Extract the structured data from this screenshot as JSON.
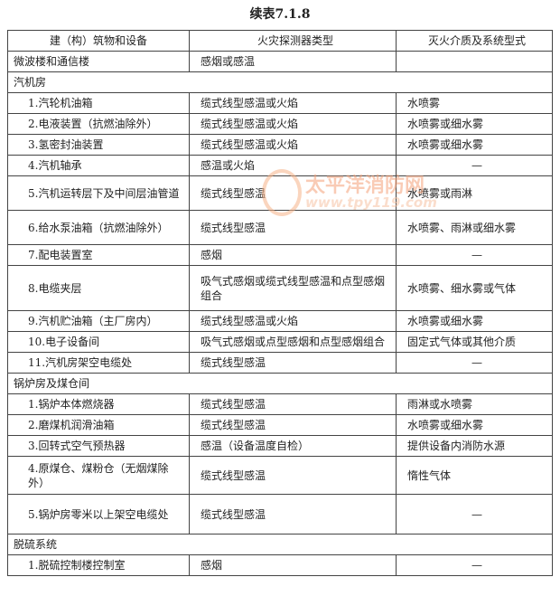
{
  "title": "续表7.1.8",
  "headers": [
    "建（构）筑物和设备",
    "火灾探测器类型",
    "灭火介质及系统型式"
  ],
  "rows": [
    {
      "a": "微波楼和通信楼",
      "b": "感烟或感温",
      "c": ""
    },
    {
      "section": "汽机房"
    },
    {
      "a": "1.汽轮机油箱",
      "b": "缆式线型感温或火焰",
      "c": "水喷雾"
    },
    {
      "a": "2.电液装置（抗燃油除外）",
      "b": "缆式线型感温或火焰",
      "c": "水喷雾或细水雾"
    },
    {
      "a": "3.氢密封油装置",
      "b": "缆式线型感温或火焰",
      "c": "水喷雾或细水雾"
    },
    {
      "a": "4.汽机轴承",
      "b": "感温或火焰",
      "c": "—"
    },
    {
      "a": "5.汽机运转层下及中间层油管道",
      "b": "缆式线型感温",
      "c": "水喷雾或雨淋"
    },
    {
      "a": "6.给水泵油箱（抗燃油除外）",
      "b": "缆式线型感温",
      "c": "水喷雾、雨淋或细水雾"
    },
    {
      "a": "7.配电装置室",
      "b": "感烟",
      "c": "—"
    },
    {
      "a": "8.电缆夹层",
      "b": "吸气式感烟或缆式线型感温和点型感烟组合",
      "c": "水喷雾、细水雾或气体"
    },
    {
      "a": "9.汽机贮油箱（主厂房内）",
      "b": "缆式线型感温或火焰",
      "c": "水喷雾或细水雾"
    },
    {
      "a": "10.电子设备间",
      "b": "吸气式感烟或点型感烟和点型感烟组合",
      "c": "固定式气体或其他介质"
    },
    {
      "a": "11.汽机房架空电缆处",
      "b": "缆式线型感温",
      "c": "—"
    },
    {
      "section": "锅炉房及煤仓间"
    },
    {
      "a": "1.锅炉本体燃烧器",
      "b": "缆式线型感温",
      "c": "雨淋或水喷雾"
    },
    {
      "a": "2.磨煤机润滑油箱",
      "b": "缆式线型感温",
      "c": "水喷雾或细水雾"
    },
    {
      "a": "3.回转式空气预热器",
      "b": "感温（设备温度自检）",
      "c": "提供设备内消防水源"
    },
    {
      "a": "4.原煤仓、煤粉仓（无烟煤除外）",
      "b": "缆式线型感温",
      "c": "惰性气体"
    },
    {
      "a": "5.锅炉房零米以上架空电缆处",
      "b": "缆式线型感温",
      "c": "—"
    },
    {
      "section": "脱硫系统"
    },
    {
      "a": "1.脱硫控制楼控制室",
      "b": "感烟",
      "c": "—"
    }
  ],
  "watermark": {
    "name": "太平洋消防网",
    "url": "www.tpy119.com"
  }
}
